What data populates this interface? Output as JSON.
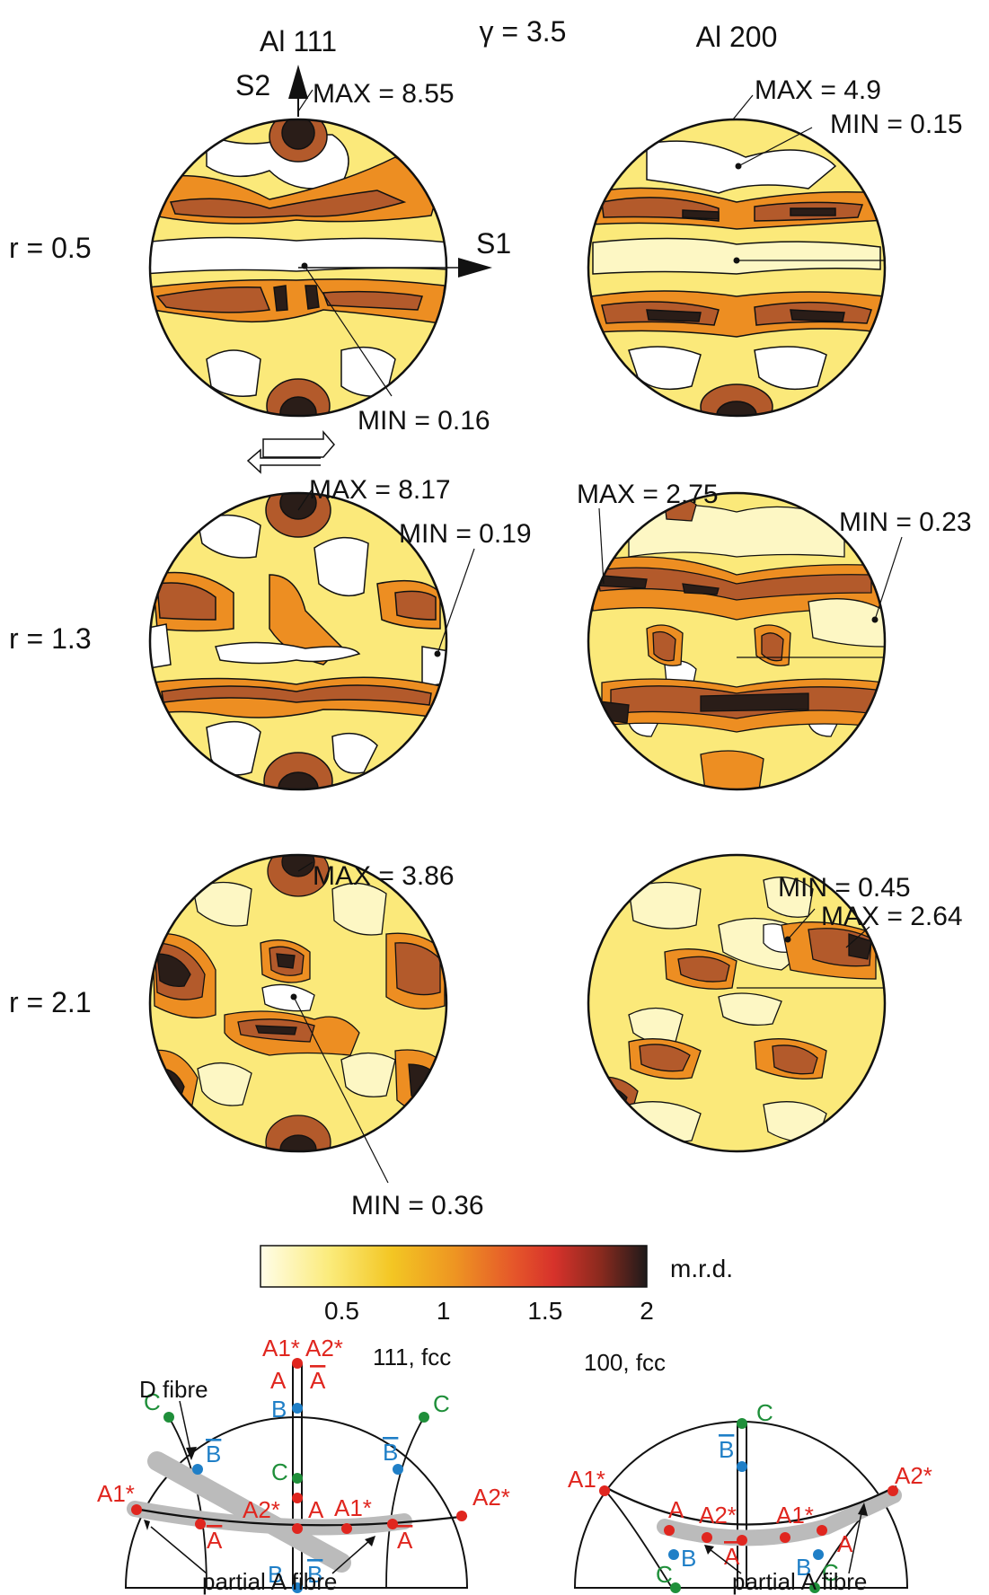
{
  "title": "γ = 3.5",
  "columns": [
    "Al 111",
    "Al 200"
  ],
  "rows": [
    "r = 0.5",
    "r = 1.3",
    "r = 2.1"
  ],
  "axes": {
    "s1": "S1",
    "s2": "S2"
  },
  "poles": [
    {
      "max": "MAX = 8.55",
      "min": "MIN = 0.16"
    },
    {
      "max": "MAX = 4.9",
      "min": "MIN = 0.15"
    },
    {
      "max": "MAX = 8.17",
      "min": "MIN = 0.19"
    },
    {
      "max": "MAX = 2.75",
      "min": "MIN = 0.23"
    },
    {
      "max": "MAX = 3.86",
      "min": "MIN = 0.36"
    },
    {
      "max": "MAX = 2.64",
      "min": "MIN = 0.45"
    }
  ],
  "colorbar": {
    "unit": "m.r.d.",
    "ticks": [
      "0.5",
      "1",
      "1.5",
      "2"
    ],
    "tick_values": [
      0.5,
      1,
      1.5,
      2
    ],
    "range": [
      0.1,
      2
    ],
    "colors": [
      "#fffde8",
      "#fbeb7a",
      "#f3c623",
      "#ee9622",
      "#e5552a",
      "#d7322b",
      "#8a2a1e",
      "#1f1a1a"
    ]
  },
  "fill_colors": {
    "white": "#ffffff",
    "pale": "#fdf7c4",
    "yellow": "#fbe97a",
    "orange": "#ed8e22",
    "brown": "#b35a2b",
    "dark": "#2a1d18"
  },
  "schemes": [
    {
      "title": "111, fcc",
      "fibre_labels": [
        "D fibre",
        "partial A fibre"
      ],
      "labels": {
        "a1s_top": "A1*",
        "a2s_top": "A2*",
        "a": "A",
        "abar": "A",
        "b": "B",
        "c": "C",
        "bbar": "B",
        "a1s": "A1*",
        "a2s": "A2*",
        "c_mid": "C",
        "a2s_mid": "A2*",
        "a_mid": "A",
        "a1s_mid": "A1*",
        "abar_l": "A",
        "abar_r": "A",
        "b_bot": "B",
        "bbar_bot": "B",
        "c_l": "C",
        "c_r": "C",
        "bbar_l": "B",
        "bbar_r": "B"
      }
    },
    {
      "title": "100, fcc",
      "fibre_labels": [
        "partial A fibre"
      ],
      "labels": {
        "c_top": "C",
        "bbar": "B",
        "a1s_l": "A1*",
        "a2s_r": "A2*",
        "a_l": "A",
        "a2s_mid": "A2*",
        "a1s_mid": "A1*",
        "a_r": "A",
        "abar": "A",
        "b_l": "B",
        "b_r": "B",
        "c_bl": "C",
        "c_br": "C"
      }
    }
  ]
}
